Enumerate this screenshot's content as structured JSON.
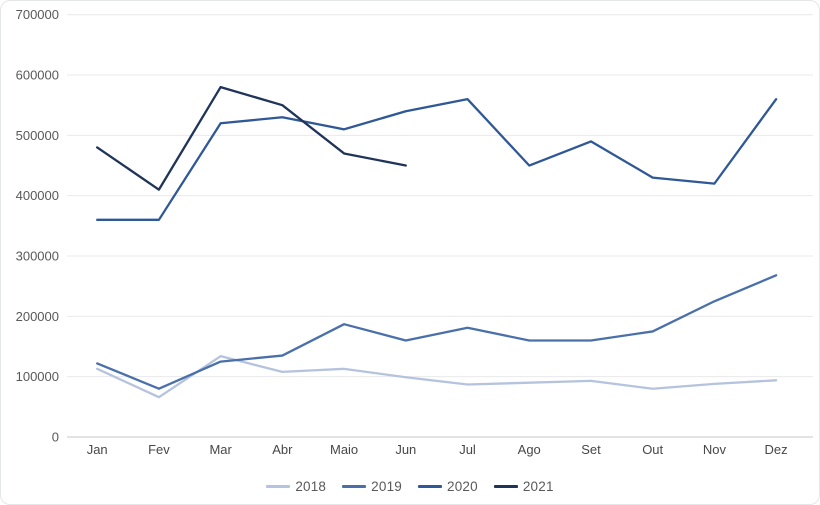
{
  "chart_data": {
    "type": "line",
    "title": "",
    "xlabel": "",
    "ylabel": "",
    "categories": [
      "Jan",
      "Fev",
      "Mar",
      "Abr",
      "Maio",
      "Jun",
      "Jul",
      "Ago",
      "Set",
      "Out",
      "Nov",
      "Dez"
    ],
    "y_tick_labels": [
      "0",
      "100000",
      "200000",
      "300000",
      "400000",
      "500000",
      "600000",
      "700000"
    ],
    "ylim": [
      0,
      700000
    ],
    "y_tick_step": 100000,
    "grid": "horizontal-only",
    "legend_position": "bottom-center",
    "series": [
      {
        "name": "2018",
        "color": "#b5c3de",
        "values": [
          113000,
          66000,
          134000,
          108000,
          113000,
          99000,
          87000,
          90000,
          93000,
          80000,
          88000,
          94000
        ]
      },
      {
        "name": "2019",
        "color": "#4a70aa",
        "values": [
          122000,
          80000,
          125000,
          135000,
          187000,
          160000,
          181000,
          160000,
          160000,
          175000,
          225000,
          268000
        ]
      },
      {
        "name": "2020",
        "color": "#2f5896",
        "values": [
          360000,
          360000,
          520000,
          530000,
          510000,
          540000,
          560000,
          450000,
          490000,
          430000,
          420000,
          560000
        ]
      },
      {
        "name": "2021",
        "color": "#1f3458",
        "values": [
          480000,
          410000,
          580000,
          550000,
          470000,
          450000,
          null,
          null,
          null,
          null,
          null,
          null
        ]
      }
    ]
  },
  "style": {
    "gridline_color": "#e9e9e9",
    "axis_line_color": "#d2d2d2",
    "tick_label_color": "#595959",
    "month_label_color": "#474747",
    "background": "#ffffff"
  }
}
